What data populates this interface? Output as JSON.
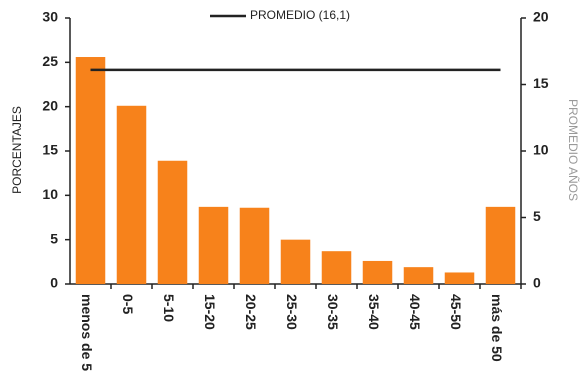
{
  "chart_data": {
    "type": "bar",
    "categories": [
      "menos de 5",
      "0-5",
      "5-10",
      "15-20",
      "20-25",
      "25-30",
      "30-35",
      "35-40",
      "40-45",
      "45-50",
      "más de 50"
    ],
    "values": [
      25.6,
      20.1,
      13.9,
      8.7,
      8.6,
      5.0,
      3.7,
      2.6,
      1.9,
      1.3,
      8.7
    ],
    "color": "#f7821b",
    "ylabel": "PORCENTAJES",
    "y2label": "PROMEDIO AÑOS",
    "ylim": [
      0,
      30
    ],
    "yticks": [
      0,
      5,
      10,
      15,
      20,
      25,
      30
    ],
    "y2lim": [
      0,
      20
    ],
    "y2ticks": [
      0,
      5,
      10,
      15,
      20
    ],
    "lines": [
      {
        "name": "PROMEDIO (16,1)",
        "value": 16.1,
        "axis": "y2",
        "color": "#222222"
      }
    ],
    "legend": "top"
  }
}
